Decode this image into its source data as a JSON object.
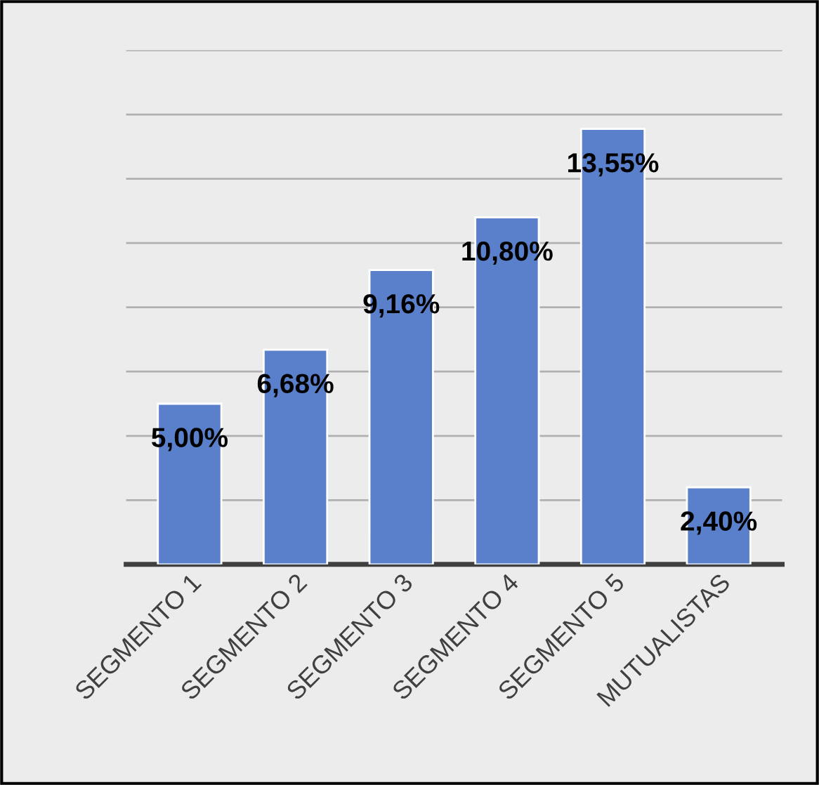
{
  "chart_data": {
    "type": "bar",
    "categories": [
      "SEGMENTO 1",
      "SEGMENTO 2",
      "SEGMENTO 3",
      "SEGMENTO 4",
      "SEGMENTO 5",
      "MUTUALISTAS"
    ],
    "values": [
      5.0,
      6.68,
      9.16,
      10.8,
      13.55,
      2.4
    ],
    "value_labels": [
      "5,00%",
      "6,68%",
      "9,16%",
      "10,80%",
      "13,55%",
      "2,40%"
    ],
    "color": "#5a80cc",
    "ylim": [
      0,
      16
    ],
    "yticks": [
      {
        "value": 0,
        "label": null
      },
      {
        "value": 2,
        "label": null
      },
      {
        "value": 4,
        "label": null
      },
      {
        "value": 6,
        "label": null
      },
      {
        "value": 8,
        "label": null
      },
      {
        "value": 10,
        "label": null
      },
      {
        "value": 12,
        "label": null
      },
      {
        "value": 14,
        "label": null
      },
      {
        "value": 16,
        "label": null
      }
    ],
    "grid": "y",
    "tick_labels": "x"
  }
}
